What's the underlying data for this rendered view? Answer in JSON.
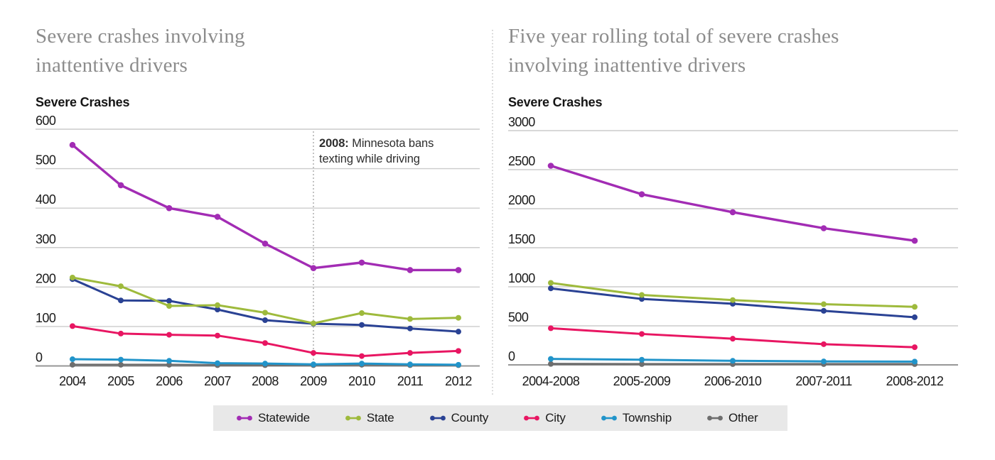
{
  "chart_data": [
    {
      "type": "line",
      "title_lines": [
        "Severe crashes involving",
        "inattentive drivers"
      ],
      "ylabel": "Severe Crashes",
      "ylim": [
        0,
        600
      ],
      "yticks": [
        600,
        500,
        400,
        300,
        200,
        100,
        0
      ],
      "grid": true,
      "categories": [
        "2004",
        "2005",
        "2006",
        "2007",
        "2008",
        "2009",
        "2010",
        "2011",
        "2012"
      ],
      "annotation": {
        "bold": "2008:",
        "line1": "Minnesota bans",
        "line2": "texting while driving",
        "line_at_category": "2009"
      },
      "series": [
        {
          "name": "Statewide",
          "color": "#a22cb4",
          "values": [
            560,
            458,
            400,
            378,
            310,
            248,
            262,
            243,
            243
          ]
        },
        {
          "name": "State",
          "color": "#9eba3c",
          "values": [
            224,
            202,
            152,
            154,
            135,
            108,
            134,
            119,
            122
          ]
        },
        {
          "name": "County",
          "color": "#2a4294",
          "values": [
            220,
            166,
            165,
            143,
            116,
            107,
            104,
            95,
            87
          ]
        },
        {
          "name": "City",
          "color": "#e81662",
          "values": [
            101,
            82,
            79,
            77,
            58,
            33,
            25,
            33,
            38
          ]
        },
        {
          "name": "Township",
          "color": "#2194ca",
          "values": [
            17,
            16,
            13,
            7,
            6,
            4,
            6,
            4,
            3
          ]
        },
        {
          "name": "Other",
          "color": "#6e6e6e",
          "values": [
            3,
            3,
            3,
            2,
            2,
            2,
            3,
            2,
            2
          ]
        }
      ]
    },
    {
      "type": "line",
      "title_lines": [
        "Five year rolling total of severe crashes",
        "involving inattentive drivers"
      ],
      "ylabel": "Severe Crashes",
      "ylim": [
        0,
        3000
      ],
      "yticks": [
        3000,
        2500,
        2000,
        1500,
        1000,
        500,
        0
      ],
      "grid": true,
      "categories": [
        "2004-2008",
        "2005-2009",
        "2006-2010",
        "2007-2011",
        "2008-2012"
      ],
      "series": [
        {
          "name": "Statewide",
          "color": "#a22cb4",
          "values": [
            2550,
            2185,
            1955,
            1750,
            1590
          ]
        },
        {
          "name": "State",
          "color": "#9eba3c",
          "values": [
            1050,
            895,
            830,
            777,
            743
          ]
        },
        {
          "name": "County",
          "color": "#2a4294",
          "values": [
            980,
            844,
            783,
            692,
            610
          ]
        },
        {
          "name": "City",
          "color": "#e81662",
          "values": [
            469,
            396,
            335,
            265,
            226
          ]
        },
        {
          "name": "Township",
          "color": "#2194ca",
          "values": [
            76,
            66,
            52,
            44,
            42
          ]
        },
        {
          "name": "Other",
          "color": "#6e6e6e",
          "values": [
            12,
            10,
            10,
            10,
            10
          ]
        }
      ]
    }
  ],
  "legend": {
    "items": [
      {
        "label": "Statewide",
        "color": "#a22cb4"
      },
      {
        "label": "State",
        "color": "#9eba3c"
      },
      {
        "label": "County",
        "color": "#2a4294"
      },
      {
        "label": "City",
        "color": "#e81662"
      },
      {
        "label": "Township",
        "color": "#2194ca"
      },
      {
        "label": "Other",
        "color": "#6e6e6e"
      }
    ]
  },
  "colors": {
    "grid_line": "#cccccc",
    "zero_axis_line": "#979797",
    "tick_text": "#1a1a1a",
    "title_text": "#8c8c8c",
    "legend_background": "#e8e8e8",
    "annotation_text": "#2d2d2d",
    "annotation_dotted_line": "#b3b3b3",
    "panel_divider": "#c6c6c6"
  }
}
